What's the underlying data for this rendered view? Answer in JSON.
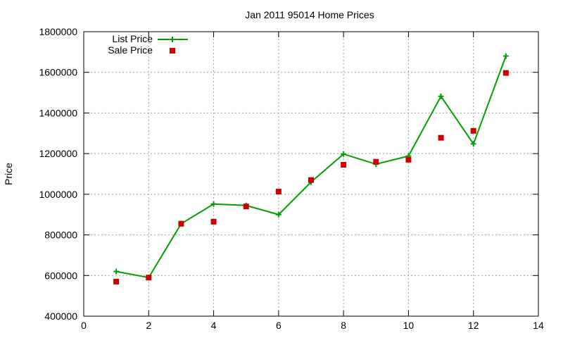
{
  "chart_data": {
    "type": "line",
    "title": "Jan 2011 95014 Home Prices",
    "xlabel": "",
    "ylabel": "Price",
    "xlim": [
      0,
      14
    ],
    "ylim": [
      400000,
      1800000
    ],
    "x_ticks": [
      0,
      2,
      4,
      6,
      8,
      10,
      12,
      14
    ],
    "y_ticks": [
      400000,
      600000,
      800000,
      1000000,
      1200000,
      1400000,
      1600000,
      1800000
    ],
    "x_tick_labels": [
      "0",
      "2",
      "4",
      "6",
      "8",
      "10",
      "12",
      "14"
    ],
    "y_tick_labels": [
      "400000",
      "600000",
      "800000",
      "1000000",
      "1200000",
      "1400000",
      "1600000",
      "1800000"
    ],
    "grid": true,
    "legend_position": "top-left",
    "series": [
      {
        "name": "List Price",
        "style": "linespoints",
        "marker": "plus",
        "color": "#00a000",
        "x": [
          1,
          2,
          3,
          4,
          5,
          6,
          7,
          8,
          9,
          10,
          11,
          12,
          13
        ],
        "y": [
          620000,
          590000,
          855000,
          952000,
          945000,
          900000,
          1060000,
          1198000,
          1148000,
          1188000,
          1482000,
          1248000,
          1680000
        ]
      },
      {
        "name": "Sale Price",
        "style": "points",
        "marker": "square",
        "color": "#cc0000",
        "x": [
          1,
          2,
          3,
          4,
          5,
          6,
          7,
          8,
          9,
          10,
          11,
          12,
          13
        ],
        "y": [
          570000,
          590000,
          855000,
          865000,
          940000,
          1013000,
          1070000,
          1145000,
          1160000,
          1170000,
          1278000,
          1312000,
          1597000
        ]
      }
    ]
  }
}
